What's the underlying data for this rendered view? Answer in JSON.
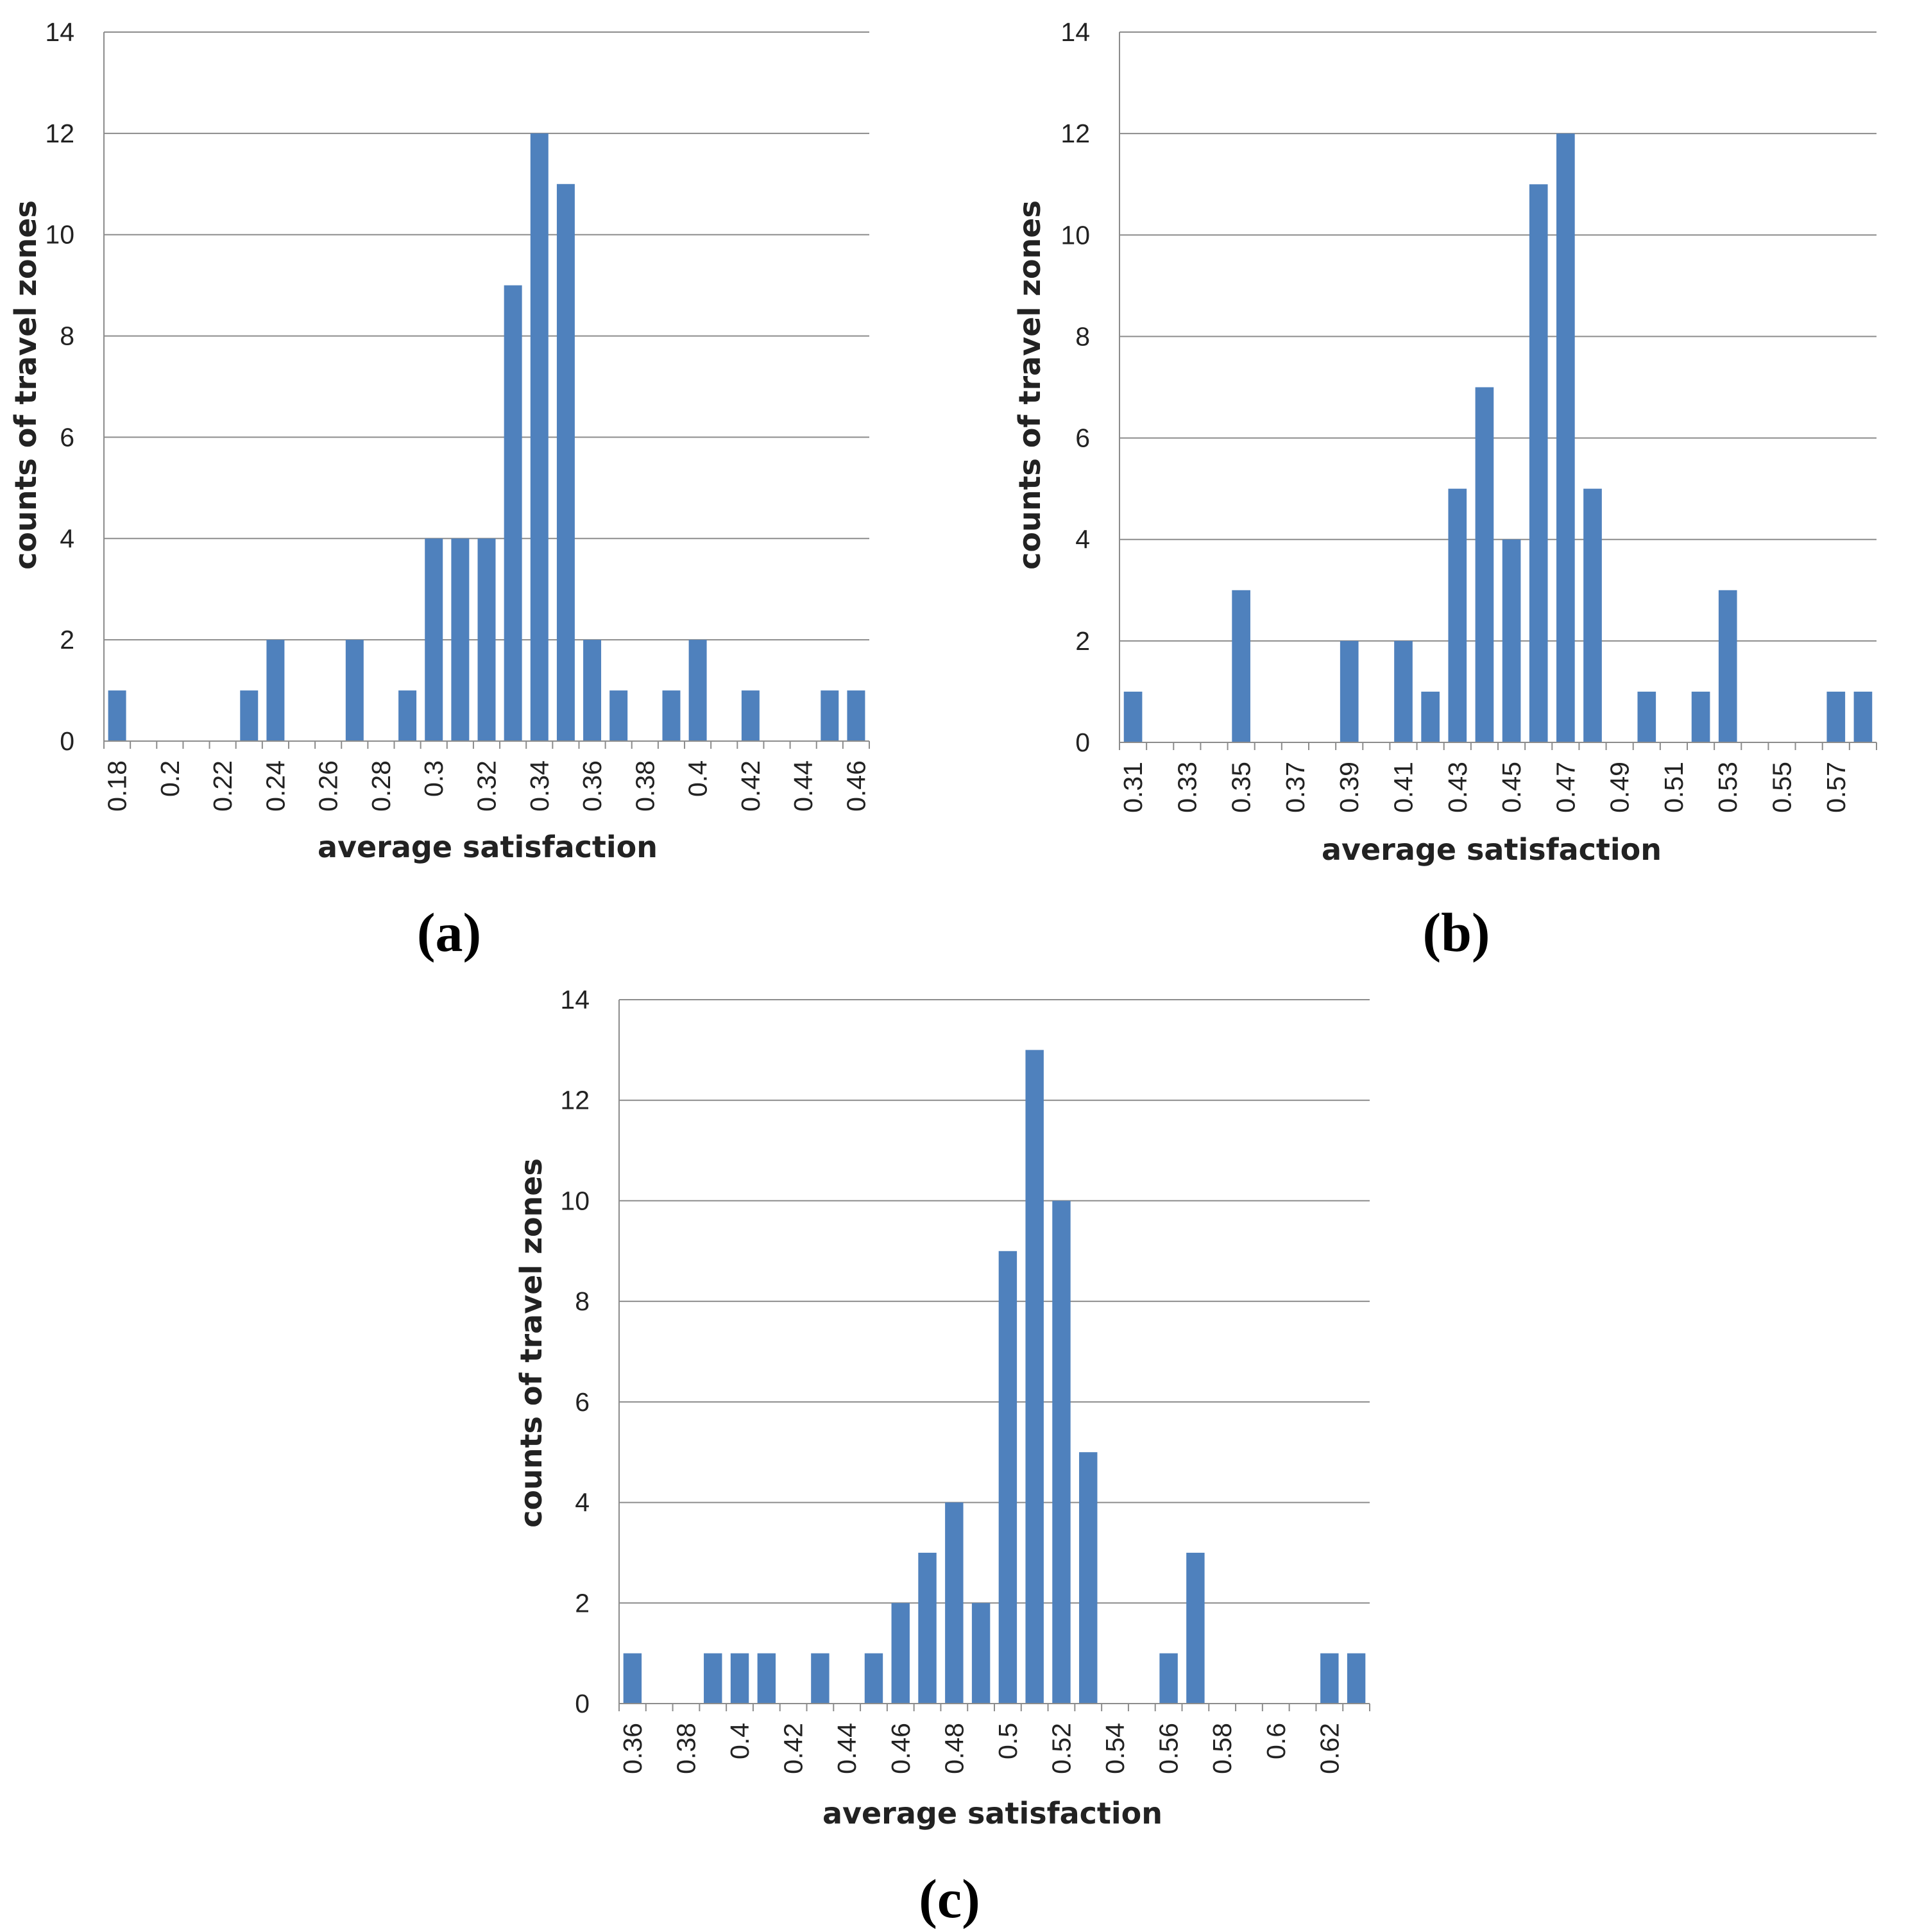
{
  "colors": {
    "bar": "#4f81bd",
    "grid": "#8c8c8c",
    "text": "#222222"
  },
  "chart_data": [
    {
      "id": "a",
      "panel_label": "(a)",
      "type": "bar",
      "xlabel": "average satisfaction",
      "ylabel": "counts of travel zones",
      "ylim": [
        0,
        14
      ],
      "yticks": [
        "0",
        "2",
        "4",
        "6",
        "8",
        "10",
        "12",
        "14"
      ],
      "categories": [
        "0.18",
        "0.19",
        "0.2",
        "0.21",
        "0.22",
        "0.23",
        "0.24",
        "0.25",
        "0.26",
        "0.27",
        "0.28",
        "0.29",
        "0.3",
        "0.31",
        "0.32",
        "0.33",
        "0.34",
        "0.35",
        "0.36",
        "0.37",
        "0.38",
        "0.39",
        "0.4",
        "0.41",
        "0.42",
        "0.43",
        "0.44",
        "0.45",
        "0.46"
      ],
      "values": [
        1,
        0,
        0,
        0,
        0,
        1,
        2,
        0,
        0,
        2,
        0,
        1,
        4,
        4,
        4,
        9,
        12,
        11,
        2,
        1,
        0,
        1,
        2,
        0,
        1,
        0,
        0,
        1,
        1
      ],
      "tick_labels": [
        "0.18",
        "0.2",
        "0.22",
        "0.24",
        "0.26",
        "0.28",
        "0.3",
        "0.32",
        "0.34",
        "0.36",
        "0.38",
        "0.4",
        "0.42",
        "0.44",
        "0.46"
      ]
    },
    {
      "id": "b",
      "panel_label": "(b)",
      "type": "bar",
      "xlabel": "average satisfaction",
      "ylabel": "counts of travel zones",
      "ylim": [
        0,
        14
      ],
      "yticks": [
        "0",
        "2",
        "4",
        "6",
        "8",
        "10",
        "12",
        "14"
      ],
      "categories": [
        "0.31",
        "0.32",
        "0.33",
        "0.34",
        "0.35",
        "0.36",
        "0.37",
        "0.38",
        "0.39",
        "0.4",
        "0.41",
        "0.42",
        "0.43",
        "0.44",
        "0.45",
        "0.46",
        "0.47",
        "0.48",
        "0.49",
        "0.5",
        "0.51",
        "0.52",
        "0.53",
        "0.54",
        "0.55",
        "0.56",
        "0.57",
        "0.58"
      ],
      "values": [
        1,
        0,
        0,
        0,
        3,
        0,
        0,
        0,
        2,
        0,
        2,
        1,
        5,
        7,
        4,
        11,
        12,
        5,
        0,
        1,
        0,
        1,
        3,
        0,
        0,
        0,
        1,
        1
      ],
      "tick_labels": [
        "0.31",
        "0.33",
        "0.35",
        "0.37",
        "0.39",
        "0.41",
        "0.43",
        "0.45",
        "0.47",
        "0.49",
        "0.51",
        "0.53",
        "0.55",
        "0.57"
      ]
    },
    {
      "id": "c",
      "panel_label": "(c)",
      "type": "bar",
      "xlabel": "average satisfaction",
      "ylabel": "counts of travel zones",
      "ylim": [
        0,
        14
      ],
      "yticks": [
        "0",
        "2",
        "4",
        "6",
        "8",
        "10",
        "12",
        "14"
      ],
      "categories": [
        "0.36",
        "0.37",
        "0.38",
        "0.39",
        "0.4",
        "0.41",
        "0.42",
        "0.43",
        "0.44",
        "0.45",
        "0.46",
        "0.47",
        "0.48",
        "0.49",
        "0.5",
        "0.51",
        "0.52",
        "0.53",
        "0.54",
        "0.55",
        "0.56",
        "0.57",
        "0.58",
        "0.59",
        "0.6",
        "0.61",
        "0.62",
        "0.63"
      ],
      "values": [
        1,
        0,
        0,
        1,
        1,
        1,
        0,
        1,
        0,
        1,
        2,
        3,
        4,
        2,
        9,
        13,
        10,
        5,
        0,
        0,
        1,
        3,
        0,
        0,
        0,
        0,
        1,
        1
      ],
      "tick_labels": [
        "0.36",
        "0.38",
        "0.4",
        "0.42",
        "0.44",
        "0.46",
        "0.48",
        "0.5",
        "0.52",
        "0.54",
        "0.56",
        "0.58",
        "0.6",
        "0.62"
      ]
    }
  ]
}
